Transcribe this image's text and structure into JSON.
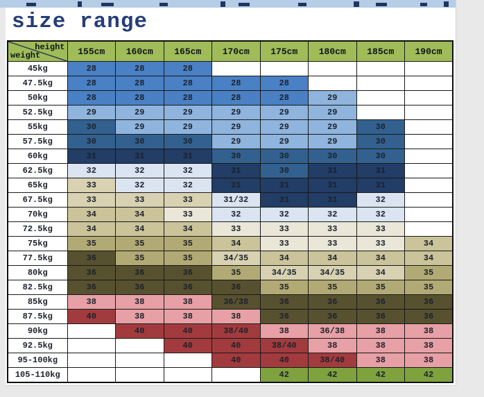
{
  "page": {
    "title": "size range",
    "title_color": "#253d7a",
    "background_color": "#e9e9e9",
    "paper_color": "#ffffff",
    "top_strip_color": "#b5cde7"
  },
  "palette": {
    "w": "#ffffff",
    "b1": "#dbe5f1",
    "b2": "#8fb4dd",
    "b3": "#4a80c4",
    "b4": "#33618f",
    "b5": "#223d66",
    "t1": "#eae7d8",
    "t2": "#d8d2b2",
    "t3": "#cbc39a",
    "t4": "#b2aa74",
    "o1": "#575130",
    "p1": "#e7a0a5",
    "p2": "#a23b3e",
    "g1": "#7ea23e",
    "header": "#9fbc58"
  },
  "chart_data": {
    "type": "table",
    "title": "size range",
    "corner": {
      "top": "height",
      "bottom": "weight"
    },
    "columns": [
      "155cm",
      "160cm",
      "165cm",
      "170cm",
      "175cm",
      "180cm",
      "185cm",
      "190cm"
    ],
    "rows": [
      {
        "label": "45kg",
        "values": [
          "28",
          "28",
          "28",
          "",
          "",
          "",
          "",
          ""
        ],
        "colors": [
          "b3",
          "b3",
          "b3",
          "w",
          "w",
          "w",
          "w",
          "w"
        ]
      },
      {
        "label": "47.5kg",
        "values": [
          "28",
          "28",
          "28",
          "28",
          "28",
          "",
          "",
          ""
        ],
        "colors": [
          "b3",
          "b3",
          "b3",
          "b3",
          "b3",
          "w",
          "w",
          "w"
        ]
      },
      {
        "label": "50kg",
        "values": [
          "28",
          "28",
          "28",
          "28",
          "28",
          "29",
          "",
          ""
        ],
        "colors": [
          "b3",
          "b3",
          "b3",
          "b3",
          "b3",
          "b2",
          "w",
          "w"
        ]
      },
      {
        "label": "52.5kg",
        "values": [
          "29",
          "29",
          "29",
          "29",
          "29",
          "29",
          "",
          ""
        ],
        "colors": [
          "b2",
          "b2",
          "b2",
          "b2",
          "b2",
          "b2",
          "w",
          "w"
        ]
      },
      {
        "label": "55kg",
        "values": [
          "30",
          "29",
          "29",
          "29",
          "29",
          "29",
          "30",
          ""
        ],
        "colors": [
          "b4",
          "b2",
          "b2",
          "b2",
          "b2",
          "b2",
          "b4",
          "w"
        ]
      },
      {
        "label": "57.5kg",
        "values": [
          "30",
          "30",
          "30",
          "29",
          "29",
          "29",
          "30",
          ""
        ],
        "colors": [
          "b4",
          "b4",
          "b4",
          "b2",
          "b2",
          "b2",
          "b4",
          "w"
        ]
      },
      {
        "label": "60kg",
        "values": [
          "31",
          "31",
          "31",
          "30",
          "30",
          "30",
          "30",
          ""
        ],
        "colors": [
          "b5",
          "b5",
          "b5",
          "b4",
          "b4",
          "b4",
          "b4",
          "w"
        ]
      },
      {
        "label": "62.5kg",
        "values": [
          "32",
          "32",
          "32",
          "31",
          "30",
          "31",
          "31",
          ""
        ],
        "colors": [
          "b1",
          "b1",
          "b1",
          "b5",
          "b4",
          "b5",
          "b5",
          "w"
        ]
      },
      {
        "label": "65kg",
        "values": [
          "33",
          "32",
          "32",
          "31",
          "31",
          "31",
          "31",
          ""
        ],
        "colors": [
          "t2",
          "b1",
          "b1",
          "b5",
          "b5",
          "b5",
          "b5",
          "w"
        ]
      },
      {
        "label": "67.5kg",
        "values": [
          "33",
          "33",
          "33",
          "31/32",
          "31",
          "31",
          "32",
          ""
        ],
        "colors": [
          "t2",
          "t2",
          "t2",
          "b1",
          "b5",
          "b5",
          "b1",
          "w"
        ]
      },
      {
        "label": "70kg",
        "values": [
          "34",
          "34",
          "33",
          "32",
          "32",
          "32",
          "32",
          ""
        ],
        "colors": [
          "t3",
          "t3",
          "t1",
          "b1",
          "b1",
          "b1",
          "b1",
          "w"
        ]
      },
      {
        "label": "72.5kg",
        "values": [
          "34",
          "34",
          "34",
          "33",
          "33",
          "33",
          "33",
          ""
        ],
        "colors": [
          "t3",
          "t3",
          "t3",
          "t1",
          "t1",
          "t1",
          "t1",
          "w"
        ]
      },
      {
        "label": "75kg",
        "values": [
          "35",
          "35",
          "35",
          "34",
          "33",
          "33",
          "33",
          "34"
        ],
        "colors": [
          "t4",
          "t4",
          "t4",
          "t3",
          "t1",
          "t1",
          "t1",
          "t3"
        ]
      },
      {
        "label": "77.5kg",
        "values": [
          "36",
          "35",
          "35",
          "34/35",
          "34",
          "34",
          "34",
          "34"
        ],
        "colors": [
          "o1",
          "t4",
          "t4",
          "t2",
          "t3",
          "t3",
          "t3",
          "t3"
        ]
      },
      {
        "label": "80kg",
        "values": [
          "36",
          "36",
          "36",
          "35",
          "34/35",
          "34/35",
          "34",
          "35"
        ],
        "colors": [
          "o1",
          "o1",
          "o1",
          "t4",
          "t2",
          "t2",
          "t2",
          "t4"
        ]
      },
      {
        "label": "82.5kg",
        "values": [
          "36",
          "36",
          "36",
          "36",
          "35",
          "35",
          "35",
          "35"
        ],
        "colors": [
          "o1",
          "o1",
          "o1",
          "o1",
          "t4",
          "t4",
          "t4",
          "t4"
        ]
      },
      {
        "label": "85kg",
        "values": [
          "38",
          "38",
          "38",
          "36/38",
          "36",
          "36",
          "36",
          "36"
        ],
        "colors": [
          "p1",
          "p1",
          "p1",
          "o1",
          "o1",
          "o1",
          "o1",
          "o1"
        ]
      },
      {
        "label": "87.5kg",
        "values": [
          "40",
          "38",
          "38",
          "38",
          "36",
          "36",
          "36",
          "36"
        ],
        "colors": [
          "p2",
          "p1",
          "p1",
          "p1",
          "o1",
          "o1",
          "o1",
          "o1"
        ]
      },
      {
        "label": "90kg",
        "values": [
          "",
          "40",
          "40",
          "38/40",
          "38",
          "36/38",
          "38",
          "38"
        ],
        "colors": [
          "w",
          "p2",
          "p2",
          "p2",
          "p1",
          "p1",
          "p1",
          "p1"
        ]
      },
      {
        "label": "92.5kg",
        "values": [
          "",
          "",
          "40",
          "40",
          "38/40",
          "38",
          "38",
          "38"
        ],
        "colors": [
          "w",
          "w",
          "p2",
          "p2",
          "p2",
          "p1",
          "p1",
          "p1"
        ]
      },
      {
        "label": "95-100kg",
        "values": [
          "",
          "",
          "",
          "40",
          "40",
          "38/40",
          "38",
          "38"
        ],
        "colors": [
          "w",
          "w",
          "w",
          "p2",
          "p2",
          "p2",
          "p1",
          "p1"
        ]
      },
      {
        "label": "105-110kg",
        "values": [
          "",
          "",
          "",
          "",
          "42",
          "42",
          "42",
          "42"
        ],
        "colors": [
          "w",
          "w",
          "w",
          "w",
          "g1",
          "g1",
          "g1",
          "g1"
        ]
      }
    ]
  }
}
